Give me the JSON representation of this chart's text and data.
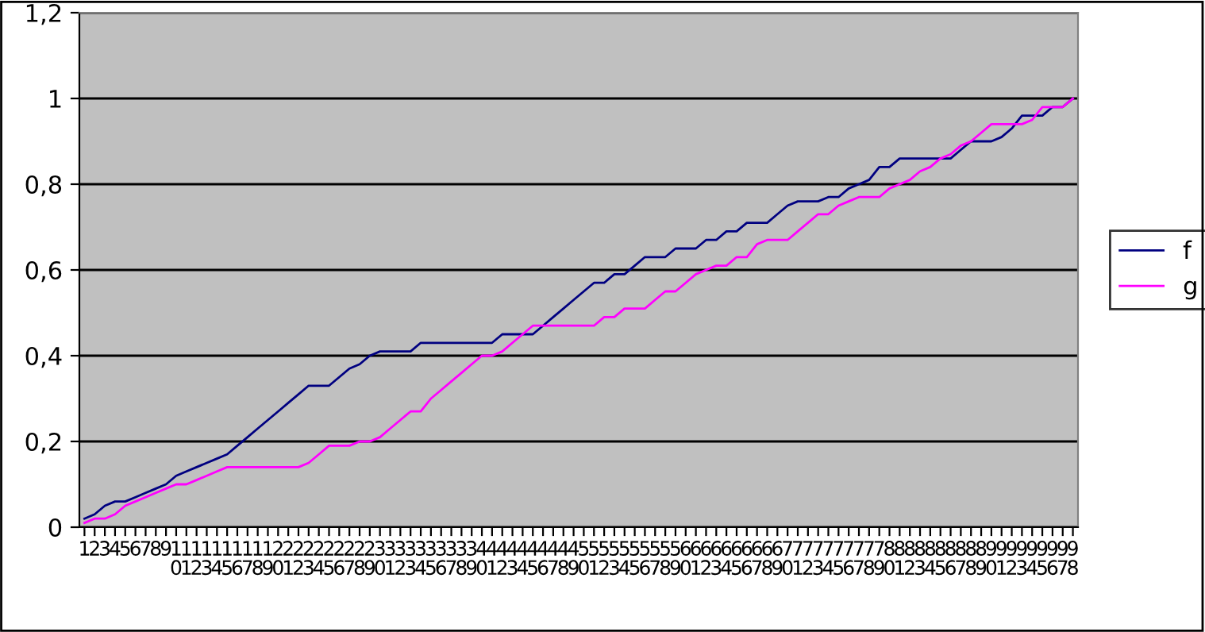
{
  "chart_data": {
    "type": "line",
    "categories": [
      "1",
      "2",
      "3",
      "4",
      "5",
      "6",
      "7",
      "8",
      "9",
      "10",
      "11",
      "12",
      "13",
      "14",
      "15",
      "16",
      "17",
      "18",
      "19",
      "20",
      "21",
      "22",
      "23",
      "24",
      "25",
      "26",
      "27",
      "28",
      "29",
      "30",
      "31",
      "32",
      "33",
      "34",
      "35",
      "36",
      "37",
      "38",
      "39",
      "40",
      "41",
      "42",
      "43",
      "44",
      "45",
      "46",
      "47",
      "48",
      "49",
      "50",
      "51",
      "52",
      "53",
      "54",
      "55",
      "56",
      "57",
      "58",
      "59",
      "60",
      "61",
      "62",
      "63",
      "64",
      "65",
      "66",
      "67",
      "68",
      "69",
      "70",
      "71",
      "72",
      "73",
      "74",
      "75",
      "76",
      "77",
      "78",
      "79",
      "80",
      "81",
      "82",
      "83",
      "84",
      "85",
      "86",
      "87",
      "88",
      "89",
      "90",
      "91",
      "92",
      "93",
      "94",
      "95",
      "96",
      "97",
      "98"
    ],
    "series": [
      {
        "name": "f",
        "color": "#000080",
        "values": [
          0.02,
          0.03,
          0.05,
          0.06,
          0.06,
          0.07,
          0.08,
          0.09,
          0.1,
          0.12,
          0.13,
          0.14,
          0.15,
          0.16,
          0.17,
          0.19,
          0.21,
          0.23,
          0.25,
          0.27,
          0.29,
          0.31,
          0.33,
          0.33,
          0.33,
          0.35,
          0.37,
          0.38,
          0.4,
          0.41,
          0.41,
          0.41,
          0.41,
          0.43,
          0.43,
          0.43,
          0.43,
          0.43,
          0.43,
          0.43,
          0.43,
          0.45,
          0.45,
          0.45,
          0.45,
          0.47,
          0.49,
          0.51,
          0.53,
          0.55,
          0.57,
          0.57,
          0.59,
          0.59,
          0.61,
          0.63,
          0.63,
          0.63,
          0.65,
          0.65,
          0.65,
          0.67,
          0.67,
          0.69,
          0.69,
          0.71,
          0.71,
          0.71,
          0.73,
          0.75,
          0.76,
          0.76,
          0.76,
          0.77,
          0.77,
          0.79,
          0.8,
          0.81,
          0.84,
          0.84,
          0.86,
          0.86,
          0.86,
          0.86,
          0.86,
          0.86,
          0.88,
          0.9,
          0.9,
          0.9,
          0.91,
          0.93,
          0.96,
          0.96,
          0.96,
          0.98,
          0.98,
          1.0
        ]
      },
      {
        "name": "g",
        "color": "#ff00ff",
        "values": [
          0.01,
          0.02,
          0.02,
          0.03,
          0.05,
          0.06,
          0.07,
          0.08,
          0.09,
          0.1,
          0.1,
          0.11,
          0.12,
          0.13,
          0.14,
          0.14,
          0.14,
          0.14,
          0.14,
          0.14,
          0.14,
          0.14,
          0.15,
          0.17,
          0.19,
          0.19,
          0.19,
          0.2,
          0.2,
          0.21,
          0.23,
          0.25,
          0.27,
          0.27,
          0.3,
          0.32,
          0.34,
          0.36,
          0.38,
          0.4,
          0.4,
          0.41,
          0.43,
          0.45,
          0.47,
          0.47,
          0.47,
          0.47,
          0.47,
          0.47,
          0.47,
          0.49,
          0.49,
          0.51,
          0.51,
          0.51,
          0.53,
          0.55,
          0.55,
          0.57,
          0.59,
          0.6,
          0.61,
          0.61,
          0.63,
          0.63,
          0.66,
          0.67,
          0.67,
          0.67,
          0.69,
          0.71,
          0.73,
          0.73,
          0.75,
          0.76,
          0.77,
          0.77,
          0.77,
          0.79,
          0.8,
          0.81,
          0.83,
          0.84,
          0.86,
          0.87,
          0.89,
          0.9,
          0.92,
          0.94,
          0.94,
          0.94,
          0.94,
          0.95,
          0.98,
          0.98,
          0.98,
          1.0
        ]
      }
    ],
    "ylim": [
      0,
      1.2
    ],
    "yticks": [
      0,
      {
        "value": 0.2,
        "label": "0,2"
      },
      {
        "value": 0.4,
        "label": "0,4"
      },
      {
        "value": 0.6,
        "label": "0,6"
      },
      {
        "value": 0.8,
        "label": "0,8"
      },
      1,
      {
        "value": 1.2,
        "label": "1,2"
      }
    ],
    "grid": "y",
    "legend": "right",
    "marker": "none",
    "line_style": "solid"
  }
}
